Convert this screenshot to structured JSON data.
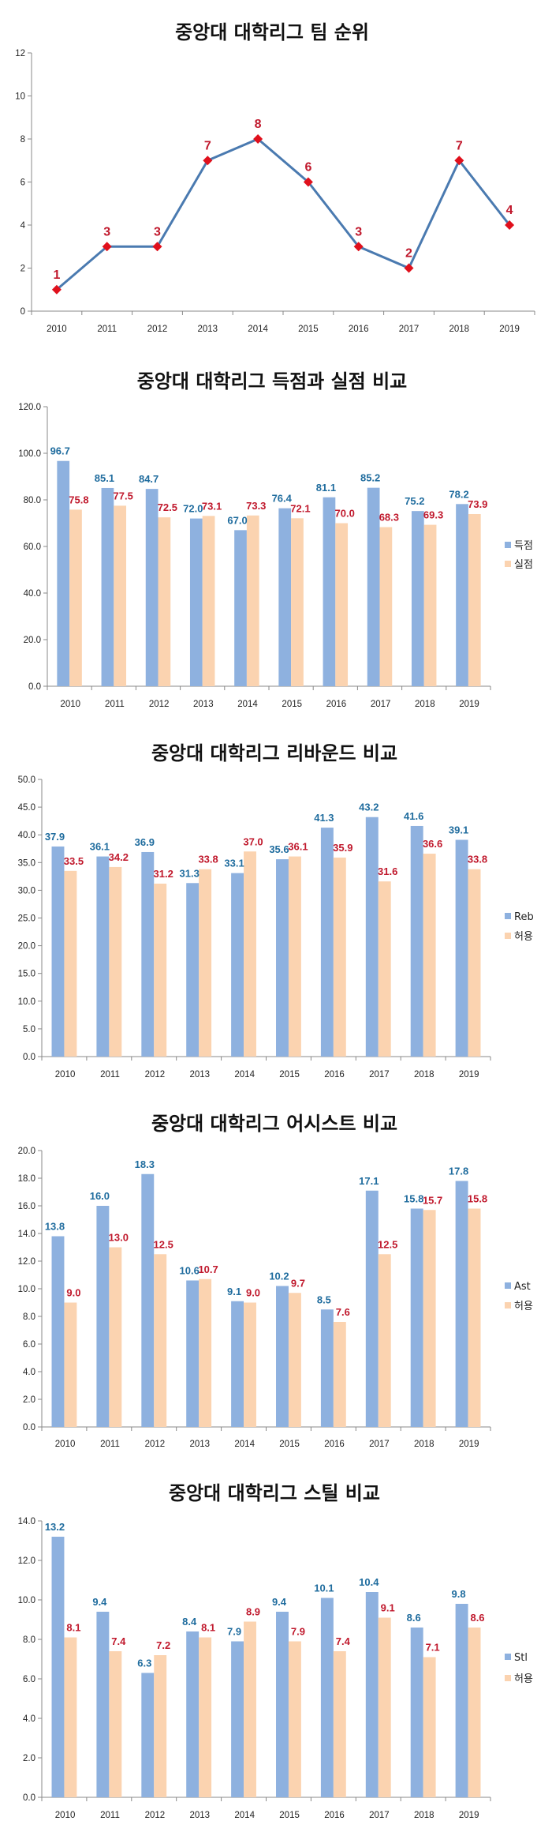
{
  "colors": {
    "bar_primary": "#8eb1df",
    "bar_secondary": "#fbd3b0",
    "label_primary": "#1f6c9e",
    "label_secondary": "#c0182c",
    "line": "#4a7ab0",
    "marker": "#e0101c",
    "axis": "#888888"
  },
  "chart_data": [
    {
      "type": "line",
      "title": "중앙대 대학리그 팀 순위",
      "categories": [
        "2010",
        "2011",
        "2012",
        "2013",
        "2014",
        "2015",
        "2016",
        "2017",
        "2018",
        "2019"
      ],
      "values": [
        1,
        3,
        3,
        7,
        8,
        6,
        3,
        2,
        7,
        4
      ],
      "data_labels": [
        "1",
        "3",
        "3",
        "7",
        "8",
        "6",
        "3",
        "2",
        "7",
        "4"
      ],
      "ylim": [
        0,
        12
      ],
      "yticks": [
        "0",
        "2",
        "4",
        "6",
        "8",
        "10",
        "12"
      ],
      "ytick_values": [
        0,
        2,
        4,
        6,
        8,
        10,
        12
      ],
      "xlabel": "",
      "ylabel": "",
      "legend": "none",
      "grid": false
    },
    {
      "type": "bar",
      "title": "중앙대 대학리그 득점과 실점 비교",
      "categories": [
        "2010",
        "2011",
        "2012",
        "2013",
        "2014",
        "2015",
        "2016",
        "2017",
        "2018",
        "2019"
      ],
      "series": [
        {
          "name": "득점",
          "values": [
            96.7,
            85.1,
            84.7,
            72.0,
            67.0,
            76.4,
            81.1,
            85.2,
            75.2,
            78.2
          ],
          "labels": [
            "96.7",
            "85.1",
            "84.7",
            "72.0",
            "67.0",
            "76.4",
            "81.1",
            "85.2",
            "75.2",
            "78.2"
          ]
        },
        {
          "name": "실점",
          "values": [
            75.8,
            77.5,
            72.5,
            73.1,
            73.3,
            72.1,
            70.0,
            68.3,
            69.3,
            73.9
          ],
          "labels": [
            "75.8",
            "77.5",
            "72.5",
            "73.1",
            "73.3",
            "72.1",
            "70.0",
            "68.3",
            "69.3",
            "73.9"
          ]
        }
      ],
      "ylim": [
        0,
        120
      ],
      "yticks": [
        "0.0",
        "20.0",
        "40.0",
        "60.0",
        "80.0",
        "100.0",
        "120.0"
      ],
      "ytick_values": [
        0,
        20,
        40,
        60,
        80,
        100,
        120
      ],
      "xlabel": "",
      "ylabel": "",
      "legend": "right",
      "grid": false
    },
    {
      "type": "bar",
      "title": "중앙대 대학리그 리바운드 비교",
      "categories": [
        "2010",
        "2011",
        "2012",
        "2013",
        "2014",
        "2015",
        "2016",
        "2017",
        "2018",
        "2019"
      ],
      "series": [
        {
          "name": "Reb",
          "values": [
            37.9,
            36.1,
            36.9,
            31.3,
            33.1,
            35.6,
            41.3,
            43.2,
            41.6,
            39.1
          ],
          "labels": [
            "37.9",
            "36.1",
            "36.9",
            "31.3",
            "33.1",
            "35.6",
            "41.3",
            "43.2",
            "41.6",
            "39.1"
          ]
        },
        {
          "name": "허용",
          "values": [
            33.5,
            34.2,
            31.2,
            33.8,
            37.0,
            36.1,
            35.9,
            31.6,
            36.6,
            33.8
          ],
          "labels": [
            "33.5",
            "34.2",
            "31.2",
            "33.8",
            "37.0",
            "36.1",
            "35.9",
            "31.6",
            "36.6",
            "33.8"
          ]
        }
      ],
      "ylim": [
        0,
        50
      ],
      "yticks": [
        "0.0",
        "5.0",
        "10.0",
        "15.0",
        "20.0",
        "25.0",
        "30.0",
        "35.0",
        "40.0",
        "45.0",
        "50.0"
      ],
      "ytick_values": [
        0,
        5,
        10,
        15,
        20,
        25,
        30,
        35,
        40,
        45,
        50
      ],
      "xlabel": "",
      "ylabel": "",
      "legend": "right",
      "grid": false
    },
    {
      "type": "bar",
      "title": "중앙대 대학리그 어시스트 비교",
      "categories": [
        "2010",
        "2011",
        "2012",
        "2013",
        "2014",
        "2015",
        "2016",
        "2017",
        "2018",
        "2019"
      ],
      "series": [
        {
          "name": "Ast",
          "values": [
            13.8,
            16.0,
            18.3,
            10.6,
            9.1,
            10.2,
            8.5,
            17.1,
            15.8,
            17.8
          ],
          "labels": [
            "13.8",
            "16.0",
            "18.3",
            "10.6",
            "9.1",
            "10.2",
            "8.5",
            "17.1",
            "15.8",
            "17.8"
          ]
        },
        {
          "name": "허용",
          "values": [
            9.0,
            13.0,
            12.5,
            10.7,
            9.0,
            9.7,
            7.6,
            12.5,
            15.7,
            15.8
          ],
          "labels": [
            "9.0",
            "13.0",
            "12.5",
            "10.7",
            "9.0",
            "9.7",
            "7.6",
            "12.5",
            "15.7",
            "15.8"
          ]
        }
      ],
      "ylim": [
        0,
        20
      ],
      "yticks": [
        "0.0",
        "2.0",
        "4.0",
        "6.0",
        "8.0",
        "10.0",
        "12.0",
        "14.0",
        "16.0",
        "18.0",
        "20.0"
      ],
      "ytick_values": [
        0,
        2,
        4,
        6,
        8,
        10,
        12,
        14,
        16,
        18,
        20
      ],
      "xlabel": "",
      "ylabel": "",
      "legend": "right",
      "grid": false
    },
    {
      "type": "bar",
      "title": "중앙대 대학리그 스틸 비교",
      "categories": [
        "2010",
        "2011",
        "2012",
        "2013",
        "2014",
        "2015",
        "2016",
        "2017",
        "2018",
        "2019"
      ],
      "series": [
        {
          "name": "Stl",
          "values": [
            13.2,
            9.4,
            6.3,
            8.4,
            7.9,
            9.4,
            10.1,
            10.4,
            8.6,
            9.8
          ],
          "labels": [
            "13.2",
            "9.4",
            "6.3",
            "8.4",
            "7.9",
            "9.4",
            "10.1",
            "10.4",
            "8.6",
            "9.8"
          ]
        },
        {
          "name": "허용",
          "values": [
            8.1,
            7.4,
            7.2,
            8.1,
            8.9,
            7.9,
            7.4,
            9.1,
            7.1,
            8.6
          ],
          "labels": [
            "8.1",
            "7.4",
            "7.2",
            "8.1",
            "8.9",
            "7.9",
            "7.4",
            "9.1",
            "7.1",
            "8.6"
          ]
        }
      ],
      "ylim": [
        0,
        14
      ],
      "yticks": [
        "0.0",
        "2.0",
        "4.0",
        "6.0",
        "8.0",
        "10.0",
        "12.0",
        "14.0"
      ],
      "ytick_values": [
        0,
        2,
        4,
        6,
        8,
        10,
        12,
        14
      ],
      "xlabel": "",
      "ylabel": "",
      "legend": "right",
      "grid": false
    }
  ]
}
